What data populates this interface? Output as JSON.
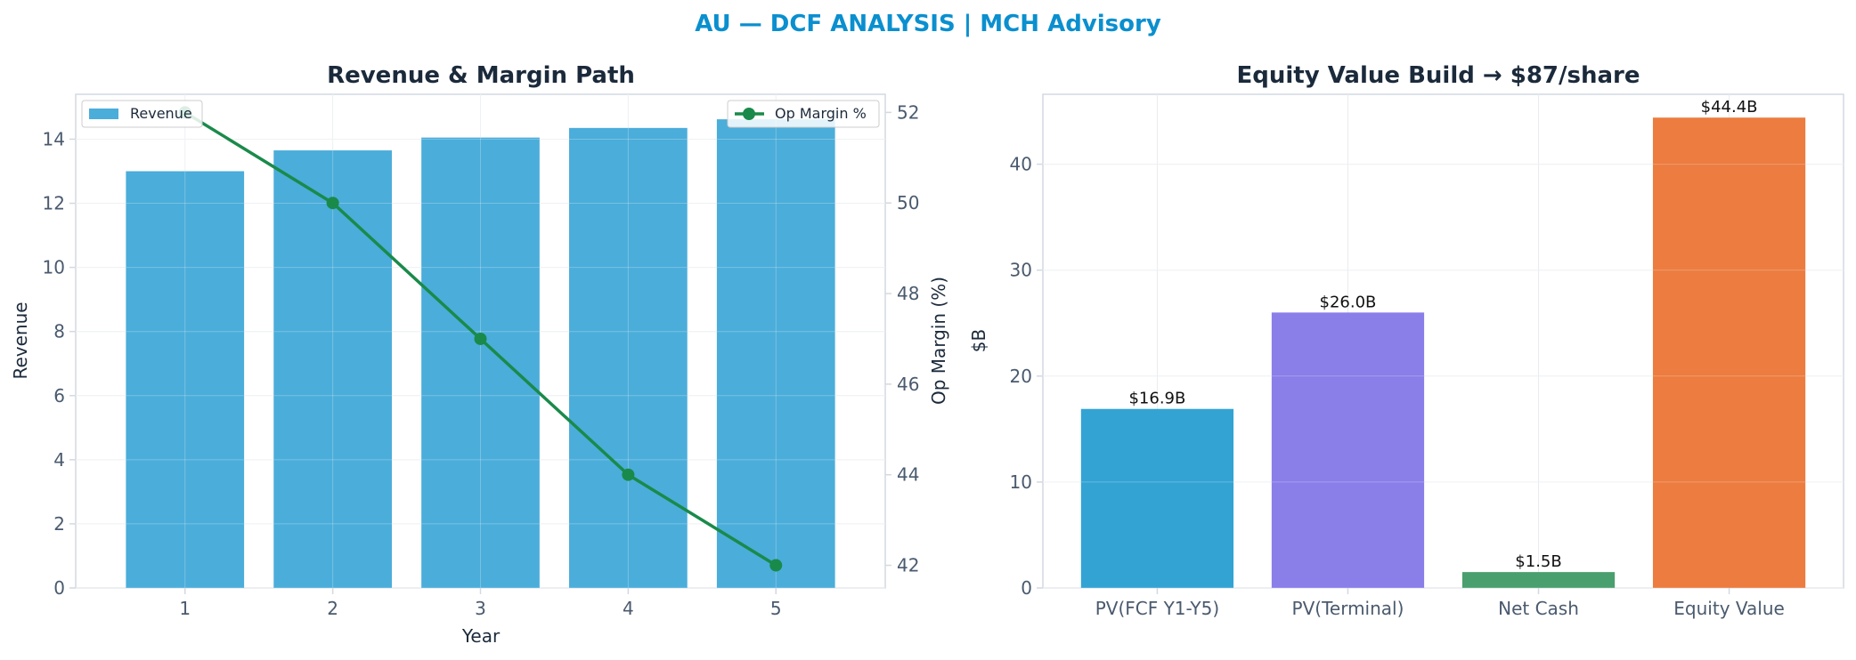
{
  "figure": {
    "suptitle": "AU — DCF ANALYSIS | MCH Advisory",
    "suptitle_color": "#0a8fcf"
  },
  "chart_data": [
    {
      "type": "bar",
      "title": "Revenue & Margin Path",
      "xlabel": "Year",
      "ylabel": "Revenue",
      "y2label": "Op Margin (%)",
      "categories": [
        "1",
        "2",
        "3",
        "4",
        "5"
      ],
      "ylim": [
        0,
        15.4
      ],
      "yticks": [
        0,
        2,
        4,
        6,
        8,
        10,
        12,
        14
      ],
      "y2lim": [
        41.5,
        52.4
      ],
      "y2ticks": [
        42,
        44,
        46,
        48,
        50,
        52
      ],
      "grid": true,
      "series": [
        {
          "name": "Revenue",
          "type": "bar",
          "axis": "left",
          "color": "#4badda",
          "values": [
            13.0,
            13.65,
            14.05,
            14.35,
            14.62
          ],
          "legend": "top-left"
        },
        {
          "name": "Op Margin %",
          "type": "line",
          "axis": "right",
          "color": "#1a8a4a",
          "values": [
            52,
            50,
            47,
            44,
            42
          ],
          "legend": "top-right"
        }
      ]
    },
    {
      "type": "bar",
      "title": "Equity Value Build → $87/share",
      "xlabel": "",
      "ylabel": "$B",
      "categories": [
        "PV(FCF Y1-Y5)",
        "PV(Terminal)",
        "Net Cash",
        "Equity Value"
      ],
      "values": [
        16.9,
        26.0,
        1.5,
        44.4
      ],
      "data_labels": [
        "$16.9B",
        "$26.0B",
        "$1.5B",
        "$44.4B"
      ],
      "colors": [
        "#33a3d4",
        "#8a7ee9",
        "#4a9f6e",
        "#ec7c3f"
      ],
      "ylim": [
        0,
        46.6
      ],
      "yticks": [
        0,
        10,
        20,
        30,
        40
      ],
      "grid": true
    }
  ]
}
